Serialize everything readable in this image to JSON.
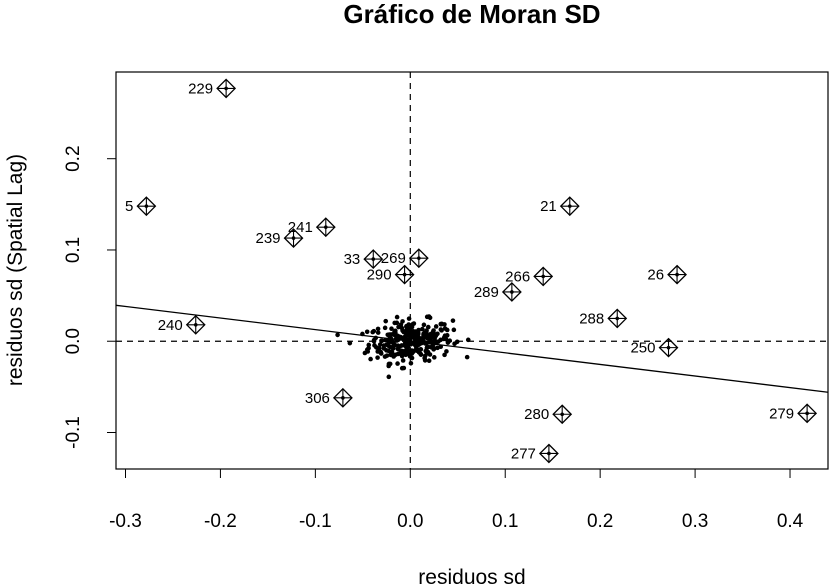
{
  "chart_data": {
    "type": "scatter",
    "title": "Gráfico de Moran SD",
    "xlabel": "residuos sd",
    "ylabel": "residuos sd (Spatial Lag)",
    "xlim": [
      -0.31,
      0.44
    ],
    "ylim": [
      -0.14,
      0.295
    ],
    "x_ticks": [
      "-0.3",
      "-0.2",
      "-0.1",
      "0.0",
      "0.1",
      "0.2",
      "0.3",
      "0.4"
    ],
    "x_tick_values": [
      -0.3,
      -0.2,
      -0.1,
      0.0,
      0.1,
      0.2,
      0.3,
      0.4
    ],
    "y_ticks": [
      "-0.1",
      "0.0",
      "0.1",
      "0.2"
    ],
    "y_tick_values": [
      -0.1,
      0.0,
      0.1,
      0.2
    ],
    "reference_lines": {
      "x_mean": 0.0,
      "y_mean": 0.0,
      "style": "dashed"
    },
    "regression_line": {
      "slope": -0.127,
      "intercept": 0.0
    },
    "influential_points": [
      {
        "label": "229",
        "x": -0.194,
        "y": 0.277
      },
      {
        "label": "5",
        "x": -0.278,
        "y": 0.148
      },
      {
        "label": "241",
        "x": -0.089,
        "y": 0.125
      },
      {
        "label": "239",
        "x": -0.123,
        "y": 0.113
      },
      {
        "label": "33",
        "x": -0.039,
        "y": 0.09
      },
      {
        "label": "269",
        "x": 0.009,
        "y": 0.091
      },
      {
        "label": "290",
        "x": -0.006,
        "y": 0.073
      },
      {
        "label": "21",
        "x": 0.168,
        "y": 0.148
      },
      {
        "label": "266",
        "x": 0.14,
        "y": 0.071
      },
      {
        "label": "26",
        "x": 0.281,
        "y": 0.073
      },
      {
        "label": "289",
        "x": 0.107,
        "y": 0.054
      },
      {
        "label": "288",
        "x": 0.218,
        "y": 0.025
      },
      {
        "label": "240",
        "x": -0.226,
        "y": 0.018
      },
      {
        "label": "250",
        "x": 0.272,
        "y": -0.007
      },
      {
        "label": "306",
        "x": -0.071,
        "y": -0.062
      },
      {
        "label": "280",
        "x": 0.16,
        "y": -0.08
      },
      {
        "label": "279",
        "x": 0.418,
        "y": -0.079
      },
      {
        "label": "277",
        "x": 0.146,
        "y": -0.123
      }
    ],
    "cluster": {
      "center_x": 0.0,
      "center_y": 0.0,
      "spread_x": 0.022,
      "spread_y": 0.011,
      "count": 300
    }
  }
}
